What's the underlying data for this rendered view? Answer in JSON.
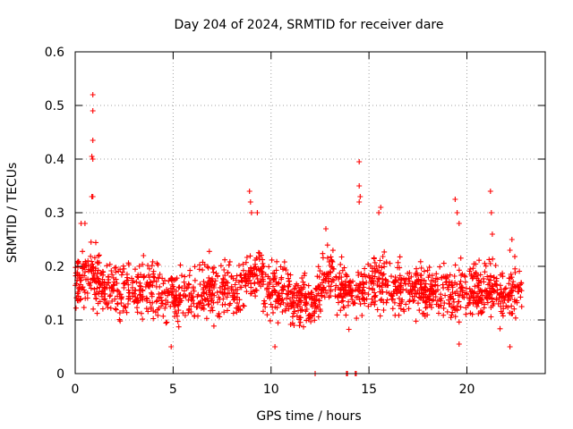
{
  "chart_data": {
    "type": "scatter",
    "title": "Day 204 of 2024, SRMTID for receiver dare",
    "xlabel": "GPS time / hours",
    "ylabel": "SRMTID / TECUs",
    "xlim": [
      0,
      24
    ],
    "ylim": [
      0,
      0.6
    ],
    "xticks": [
      0,
      5,
      10,
      15,
      20
    ],
    "xtick_labels": [
      "0",
      "5",
      "10",
      "15",
      "20"
    ],
    "yticks": [
      0,
      0.1,
      0.2,
      0.3,
      0.4,
      0.5,
      0.6
    ],
    "ytick_labels": [
      "0",
      "0.1",
      "0.2",
      "0.3",
      "0.4",
      "0.5",
      "0.6"
    ],
    "grid": true,
    "marker": "plus",
    "color": "#ff0000",
    "series": [
      {
        "name": "SRMTID",
        "x_start": 0.0,
        "x_end": 22.8,
        "typical_range": [
          0.08,
          0.23
        ],
        "outliers": [
          {
            "x": 0.9,
            "y": 0.52
          },
          {
            "x": 0.9,
            "y": 0.49
          },
          {
            "x": 0.9,
            "y": 0.435
          },
          {
            "x": 0.85,
            "y": 0.405
          },
          {
            "x": 0.9,
            "y": 0.4
          },
          {
            "x": 0.85,
            "y": 0.33
          },
          {
            "x": 0.9,
            "y": 0.33
          },
          {
            "x": 0.3,
            "y": 0.28
          },
          {
            "x": 0.5,
            "y": 0.28
          },
          {
            "x": 8.9,
            "y": 0.34
          },
          {
            "x": 8.95,
            "y": 0.32
          },
          {
            "x": 9.0,
            "y": 0.3
          },
          {
            "x": 9.3,
            "y": 0.3
          },
          {
            "x": 12.8,
            "y": 0.27
          },
          {
            "x": 14.5,
            "y": 0.395
          },
          {
            "x": 14.5,
            "y": 0.35
          },
          {
            "x": 14.55,
            "y": 0.33
          },
          {
            "x": 14.5,
            "y": 0.32
          },
          {
            "x": 15.6,
            "y": 0.31
          },
          {
            "x": 15.5,
            "y": 0.3
          },
          {
            "x": 19.4,
            "y": 0.325
          },
          {
            "x": 19.5,
            "y": 0.3
          },
          {
            "x": 19.6,
            "y": 0.28
          },
          {
            "x": 21.2,
            "y": 0.34
          },
          {
            "x": 21.25,
            "y": 0.3
          },
          {
            "x": 21.3,
            "y": 0.26
          },
          {
            "x": 22.3,
            "y": 0.25
          },
          {
            "x": 22.2,
            "y": 0.23
          },
          {
            "x": 22.2,
            "y": 0.05
          },
          {
            "x": 19.6,
            "y": 0.055
          },
          {
            "x": 10.2,
            "y": 0.05
          },
          {
            "x": 4.9,
            "y": 0.05
          }
        ],
        "zero_points": [
          {
            "x": 12.25,
            "y": 0
          },
          {
            "x": 13.85,
            "y": 0
          },
          {
            "x": 13.9,
            "y": 0
          },
          {
            "x": 14.3,
            "y": 0
          },
          {
            "x": 14.35,
            "y": 0
          }
        ]
      }
    ]
  }
}
